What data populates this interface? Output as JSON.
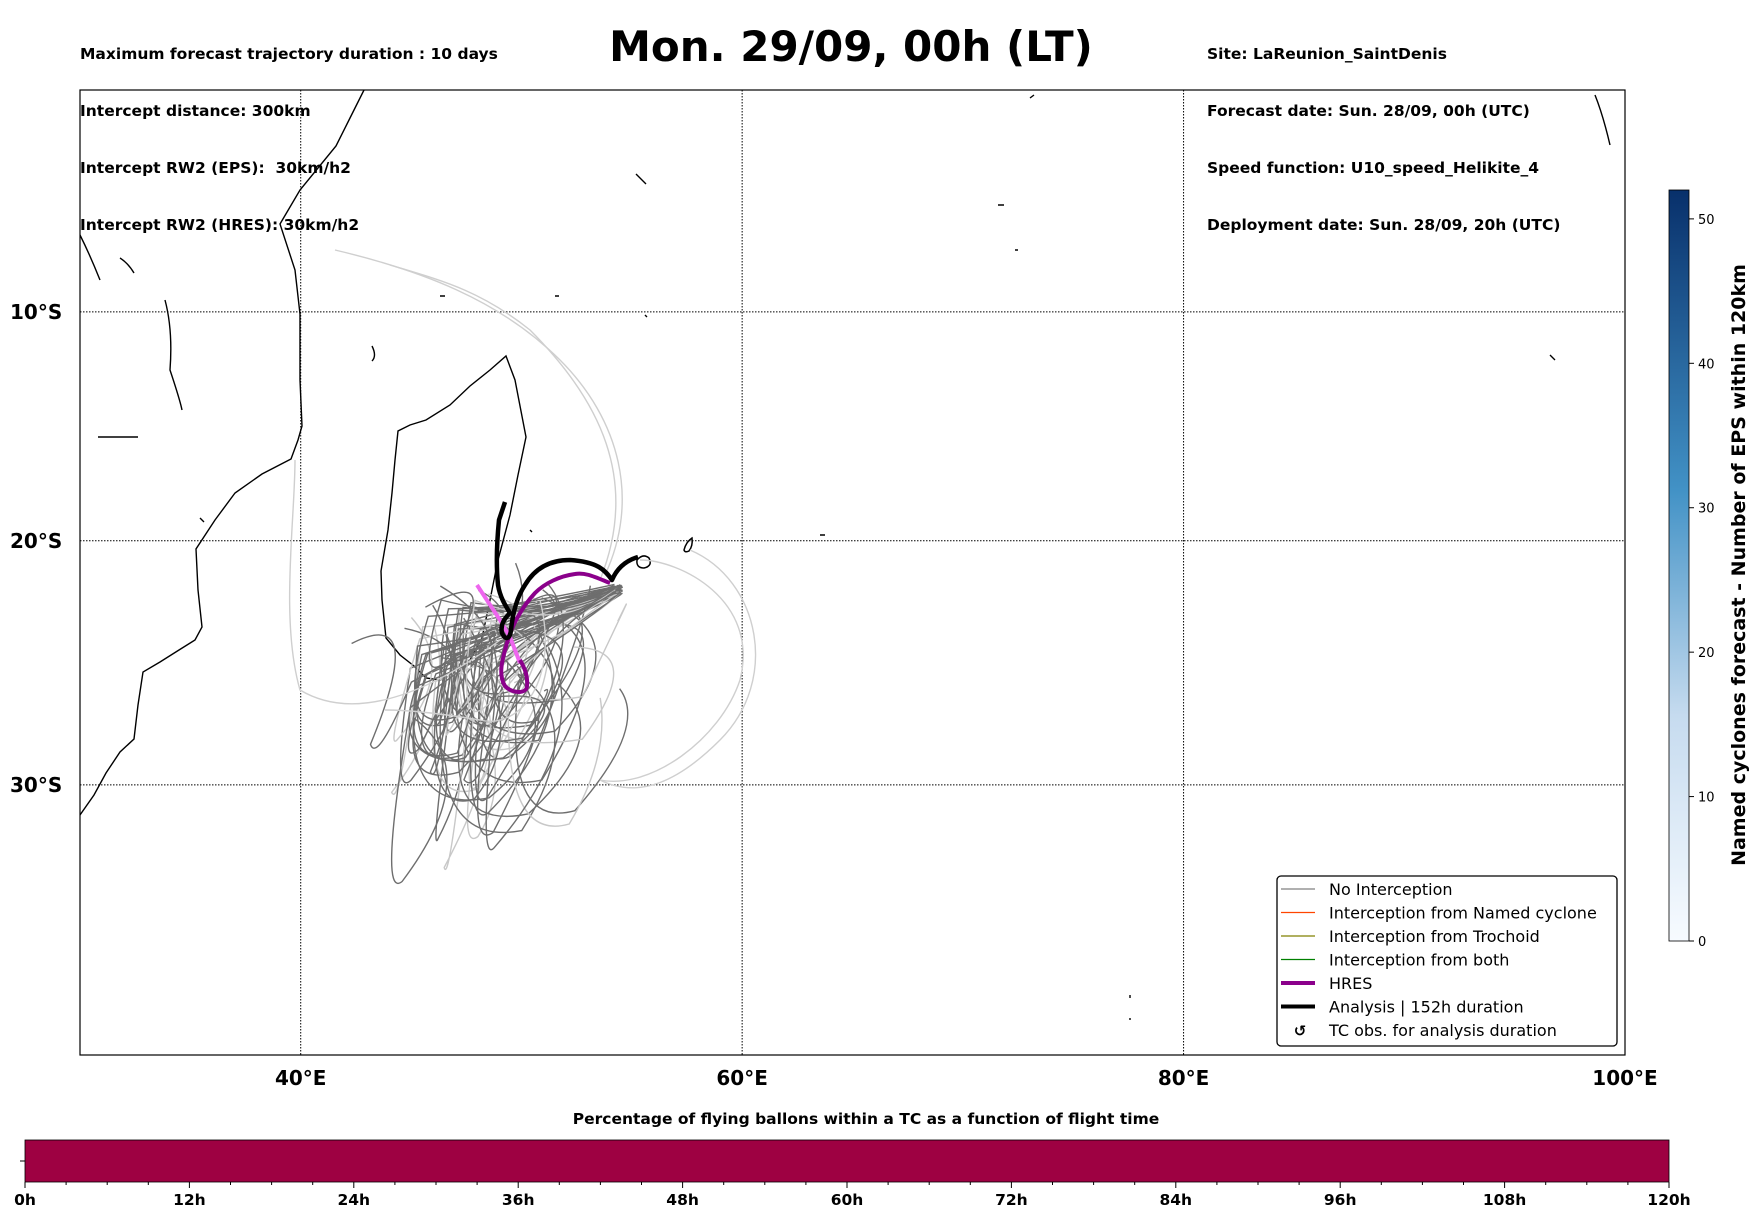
{
  "header_left": [
    "Maximum forecast trajectory duration : 10 days",
    "Intercept distance: 300km",
    "Intercept RW2 (EPS):  30km/h2",
    "Intercept RW2 (HRES): 30km/h2"
  ],
  "title": "Mon. 29/09, 00h (LT)",
  "header_right": [
    "Site: LaReunion_SaintDenis",
    "Forecast date: Sun. 28/09, 00h (UTC)",
    "Speed function: U10_speed_Helikite_4",
    "Deployment date: Sun. 28/09, 20h (UTC)"
  ],
  "chart_data": [
    {
      "type": "line",
      "title": "Mon. 29/09, 00h (LT)",
      "map_projection": "mercator",
      "xlim": [
        30,
        100
      ],
      "ylim": [
        -40,
        0
      ],
      "x_ticks": [
        {
          "value": 40,
          "label": "40°E"
        },
        {
          "value": 60,
          "label": "60°E"
        },
        {
          "value": 80,
          "label": "80°E"
        },
        {
          "value": 100,
          "label": "100°E"
        }
      ],
      "y_ticks": [
        {
          "value": -10,
          "label": "10°S"
        },
        {
          "value": -20,
          "label": "20°S"
        },
        {
          "value": -30,
          "label": "30°S"
        }
      ],
      "grid": true,
      "legend_position": "bottom-right",
      "legend": [
        {
          "label": "No Interception",
          "color": "#808080"
        },
        {
          "label": "Interception from Named cyclone",
          "color": "#ff4500"
        },
        {
          "label": "Interception from Trochoid",
          "color": "#808000"
        },
        {
          "label": "Interception from both",
          "color": "#008000"
        },
        {
          "label": "HRES",
          "color": "#8b008b"
        },
        {
          "label": "Analysis | 152h duration",
          "color": "#000000"
        },
        {
          "label": "TC obs. for analysis duration",
          "symbol": "↺"
        }
      ],
      "launch_site": {
        "lon": 55.5,
        "lat": -21.0
      }
    },
    {
      "type": "heatmap",
      "name": "colorbar",
      "label": "Named cyclones forecast - Number of EPS within 120km",
      "range": [
        0,
        52
      ],
      "ticks": [
        "0",
        "10",
        "20",
        "30",
        "40",
        "50"
      ],
      "colors": [
        "#f7fbff",
        "#08306b"
      ]
    },
    {
      "type": "bar",
      "title": "Percentage of flying ballons within a TC as a function of flight time",
      "ticks": [
        "0h",
        "12h",
        "24h",
        "36h",
        "48h",
        "60h",
        "72h",
        "84h",
        "96h",
        "108h",
        "120h"
      ],
      "range_hours": [
        0,
        120
      ],
      "fill_color": "#9e0142"
    }
  ]
}
